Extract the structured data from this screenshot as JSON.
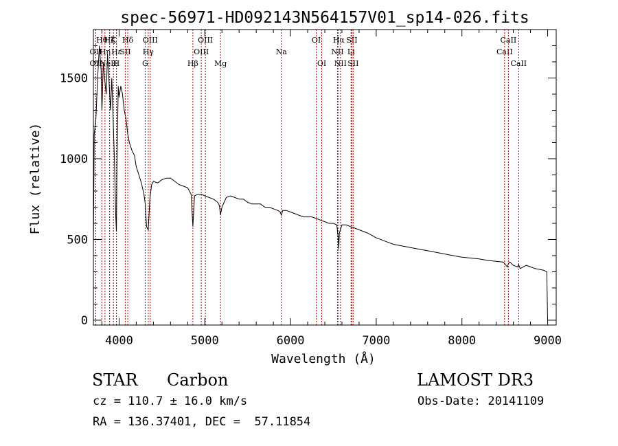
{
  "chart_data": {
    "type": "line",
    "title": "spec-56971-HD092143N564157V01_sp14-026.fits",
    "xlabel": "Wavelength (Å)",
    "ylabel": "Flux (relative)",
    "xlim": [
      3700,
      9100
    ],
    "ylim": [
      -30,
      1800
    ],
    "xticks": [
      4000,
      5000,
      6000,
      7000,
      8000,
      9000
    ],
    "xtick_labels": [
      "4000",
      "5000",
      "6000",
      "7000",
      "8000",
      "9000"
    ],
    "yticks": [
      0,
      500,
      1000,
      1500
    ],
    "ytick_labels": [
      "0",
      "500",
      "1000",
      "1500"
    ],
    "grid": false,
    "series": [
      {
        "name": "spectrum",
        "x": [
          3700,
          3710,
          3730,
          3750,
          3770,
          3790,
          3800,
          3815,
          3830,
          3850,
          3865,
          3880,
          3900,
          3915,
          3930,
          3945,
          3960,
          3968,
          3975,
          3990,
          4000,
          4020,
          4040,
          4060,
          4080,
          4101,
          4120,
          4150,
          4180,
          4200,
          4230,
          4260,
          4290,
          4305,
          4320,
          4340,
          4360,
          4380,
          4400,
          4450,
          4500,
          4550,
          4600,
          4650,
          4700,
          4750,
          4800,
          4840,
          4861,
          4880,
          4920,
          4960,
          5000,
          5050,
          5100,
          5150,
          5170,
          5183,
          5200,
          5250,
          5300,
          5350,
          5400,
          5450,
          5500,
          5550,
          5600,
          5650,
          5700,
          5750,
          5800,
          5850,
          5880,
          5893,
          5910,
          5950,
          6000,
          6050,
          6100,
          6150,
          6200,
          6250,
          6300,
          6350,
          6400,
          6450,
          6500,
          6540,
          6555,
          6563,
          6570,
          6600,
          6650,
          6700,
          6750,
          6800,
          6900,
          7000,
          7100,
          7200,
          7300,
          7400,
          7500,
          7600,
          7700,
          7800,
          7900,
          8000,
          8100,
          8200,
          8300,
          8400,
          8480,
          8500,
          8530,
          8542,
          8560,
          8600,
          8650,
          8662,
          8680,
          8750,
          8800,
          8850,
          8900,
          8950,
          8990,
          9000
        ],
        "y": [
          450,
          1150,
          1250,
          1500,
          1700,
          1550,
          1300,
          1600,
          1500,
          1400,
          1650,
          1500,
          1300,
          1500,
          1250,
          1000,
          650,
          550,
          950,
          1450,
          1380,
          1450,
          1400,
          1300,
          1250,
          1150,
          1100,
          1050,
          1020,
          950,
          900,
          850,
          780,
          720,
          580,
          560,
          760,
          840,
          860,
          850,
          870,
          880,
          880,
          860,
          840,
          830,
          820,
          780,
          580,
          770,
          780,
          780,
          770,
          760,
          750,
          730,
          710,
          650,
          700,
          760,
          770,
          760,
          750,
          750,
          730,
          720,
          720,
          720,
          700,
          700,
          690,
          680,
          670,
          650,
          680,
          680,
          670,
          660,
          650,
          640,
          640,
          640,
          630,
          620,
          610,
          600,
          600,
          590,
          520,
          440,
          540,
          590,
          590,
          580,
          570,
          560,
          540,
          510,
          490,
          470,
          460,
          450,
          440,
          430,
          420,
          410,
          400,
          390,
          385,
          380,
          370,
          365,
          360,
          350,
          330,
          350,
          360,
          340,
          330,
          345,
          320,
          340,
          330,
          320,
          315,
          310,
          300,
          0
        ]
      }
    ],
    "line_markers": [
      {
        "w": 3727,
        "label": "OII",
        "row": 2
      },
      {
        "w": 3727,
        "label": "OII",
        "row": 3
      },
      {
        "w": 3798,
        "label": "Hθ",
        "row": 1
      },
      {
        "w": 3835,
        "label": "Hη",
        "row": 2
      },
      {
        "w": 3889,
        "label": "Hζ",
        "row": 1
      },
      {
        "w": 3889,
        "label": "NeIII",
        "row": 3
      },
      {
        "w": 3934,
        "label": "K",
        "row": 1
      },
      {
        "w": 3968,
        "label": "H",
        "row": 3
      },
      {
        "w": 3970,
        "label": "Hε",
        "row": 2
      },
      {
        "w": 4072,
        "label": "SII",
        "row": 2
      },
      {
        "w": 4101,
        "label": "Hδ",
        "row": 1
      },
      {
        "w": 4304,
        "label": "G",
        "row": 3
      },
      {
        "w": 4340,
        "label": "Hγ",
        "row": 2
      },
      {
        "w": 4363,
        "label": "OIII",
        "row": 1
      },
      {
        "w": 4861,
        "label": "Hβ",
        "row": 3
      },
      {
        "w": 4959,
        "label": "OIII",
        "row": 2
      },
      {
        "w": 5007,
        "label": "OIII",
        "row": 1
      },
      {
        "w": 5183,
        "label": "Mg",
        "row": 3
      },
      {
        "w": 5893,
        "label": "Na",
        "row": 2
      },
      {
        "w": 6300,
        "label": "OI",
        "row": 1
      },
      {
        "w": 6364,
        "label": "OI",
        "row": 3
      },
      {
        "w": 6548,
        "label": "NII",
        "row": 2
      },
      {
        "w": 6563,
        "label": "Hα",
        "row": 1
      },
      {
        "w": 6583,
        "label": "NII",
        "row": 3
      },
      {
        "w": 6707,
        "label": "Li",
        "row": 2
      },
      {
        "w": 6716,
        "label": "SII",
        "row": 1
      },
      {
        "w": 6731,
        "label": "SII",
        "row": 3
      },
      {
        "w": 8498,
        "label": "CaII",
        "row": 2
      },
      {
        "w": 8542,
        "label": "CaII",
        "row": 1
      },
      {
        "w": 8662,
        "label": "CaII",
        "row": 3
      }
    ]
  },
  "info": {
    "object_class": "STAR",
    "subclass": "Carbon",
    "survey": "LAMOST DR3",
    "redshift": "cz = 110.7 ± 16.0 km/s",
    "obs_date": "Obs-Date: 20141109",
    "coords": "RA = 136.37401, DEC =  57.11854"
  },
  "colors": {
    "line": "#000000",
    "marker": "#cc0000"
  }
}
